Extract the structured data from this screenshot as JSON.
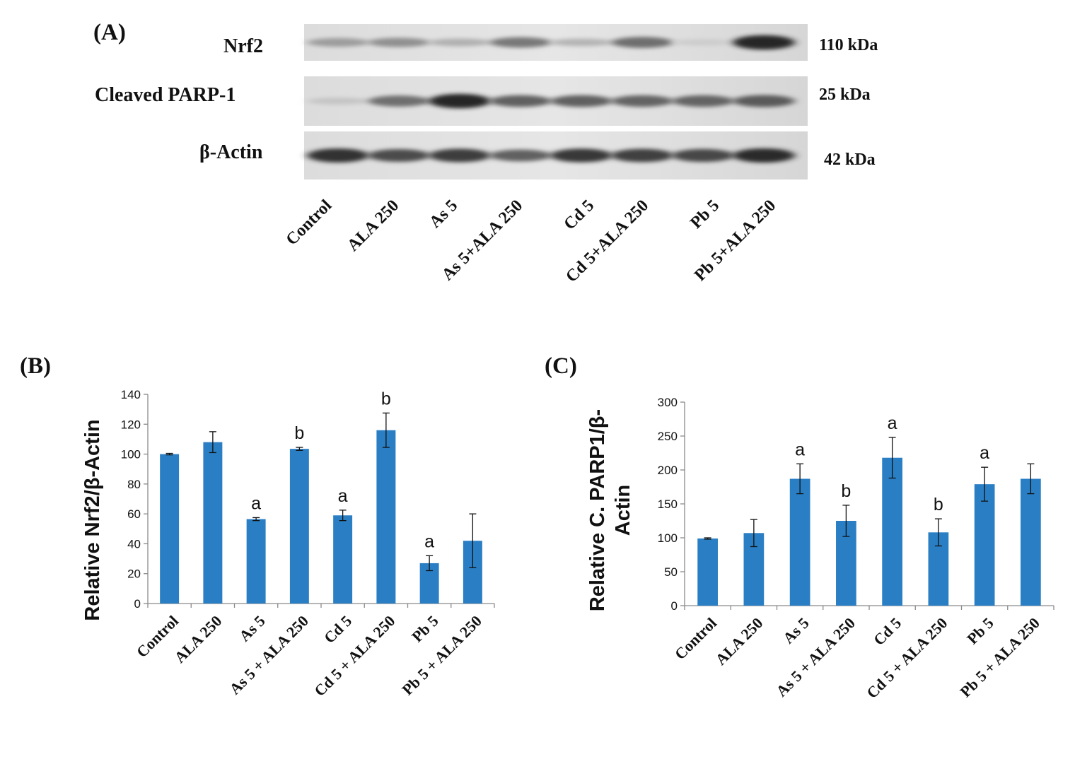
{
  "panel_a": {
    "label": "(A)",
    "lanes": [
      "Control",
      "ALA 250",
      "As 5",
      "As 5+ALA 250",
      "Cd 5",
      "Cd 5+ALA 250",
      "Pb 5",
      "Pb 5+ALA 250"
    ],
    "blots": [
      {
        "protein": "Nrf2",
        "size": "110 kDa",
        "intensities": [
          0.32,
          0.38,
          0.22,
          0.5,
          0.2,
          0.55,
          0.08,
          0.9
        ]
      },
      {
        "protein": "Cleaved PARP-1",
        "size": "25 kDa",
        "intensities": [
          0.12,
          0.55,
          0.9,
          0.62,
          0.62,
          0.6,
          0.6,
          0.65
        ]
      },
      {
        "protein": "β-Actin",
        "size": "42 kDa",
        "intensities": [
          0.85,
          0.72,
          0.8,
          0.62,
          0.82,
          0.78,
          0.75,
          0.88
        ]
      }
    ]
  },
  "chart_data": [
    {
      "panel": "(B)",
      "type": "bar",
      "ylabel": "Relative Nrf2/β-Actin",
      "xlabel": "",
      "categories": [
        "Control",
        "ALA 250",
        "As 5",
        "As 5 + ALA 250",
        "Cd 5",
        "Cd 5 + ALA 250",
        "Pb 5",
        "Pb 5 + ALA 250"
      ],
      "values": [
        100,
        108,
        56.5,
        103.5,
        59,
        116,
        27,
        42
      ],
      "errors": [
        0.5,
        7,
        1,
        1,
        3.5,
        11.5,
        5,
        18
      ],
      "annotations": [
        "",
        "",
        "a",
        "b",
        "a",
        "b",
        "a",
        ""
      ],
      "ylim": [
        0,
        140
      ],
      "yticks": [
        0,
        20,
        40,
        60,
        80,
        100,
        120,
        140
      ],
      "bar_color": "#2a7fc4",
      "grid": false,
      "legend": "none"
    },
    {
      "panel": "(C)",
      "type": "bar",
      "ylabel": "Relative C. PARP1/β-Actin",
      "ylabel_lines": [
        "Relative C. PARP1/β-",
        "Actin"
      ],
      "xlabel": "",
      "categories": [
        "Control",
        "ALA 250",
        "As 5",
        "As 5 + ALA 250",
        "Cd 5",
        "Cd 5 + ALA 250",
        "Pb 5",
        "Pb 5 + ALA 250"
      ],
      "values": [
        99,
        107,
        187,
        125,
        218,
        108,
        179,
        187
      ],
      "errors": [
        1,
        20,
        22,
        23,
        30,
        20,
        25,
        22
      ],
      "annotations": [
        "",
        "",
        "a",
        "b",
        "a",
        "b",
        "a",
        ""
      ],
      "ylim": [
        0,
        300
      ],
      "yticks": [
        0,
        50,
        100,
        150,
        200,
        250,
        300
      ],
      "bar_color": "#2a7fc4",
      "grid": false,
      "legend": "none"
    }
  ]
}
